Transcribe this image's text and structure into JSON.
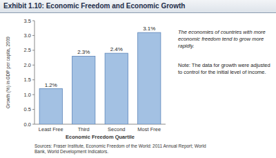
{
  "chart_data": {
    "type": "bar",
    "title": "Exhibit 1.10: Economic Freedom and Economic Growth",
    "x_label": "Economic Freedom Quartile",
    "y_label": "Growth (%) in GDP per capita, 2009",
    "categories": [
      "Least Free",
      "Third",
      "Second",
      "Most Free"
    ],
    "values": [
      1.2,
      2.3,
      2.4,
      3.1
    ],
    "value_labels": [
      "1.2%",
      "2.3%",
      "2.4%",
      "3.1%"
    ],
    "color": "#a3c1e3",
    "ylim": [
      0,
      3.5
    ],
    "yticks": [
      {
        "value": 0,
        "label": "0.0"
      },
      0.5,
      {
        "value": 1,
        "label": "1.0"
      },
      1.5,
      {
        "value": 2,
        "label": "2.0"
      },
      2.5,
      {
        "value": 3,
        "label": "3.0"
      },
      3.5
    ],
    "grid": false,
    "data_labels": true,
    "annotations": [
      "The economies of countries with more economic freedom tend to grow more rapidly.",
      "Note: The data for growth were adjusted to control for the initial level of income.",
      "Sources: Fraser Institute, Economic Freedom of the World: 2011 Annual Report; World Bank, World Development Indicators."
    ]
  }
}
